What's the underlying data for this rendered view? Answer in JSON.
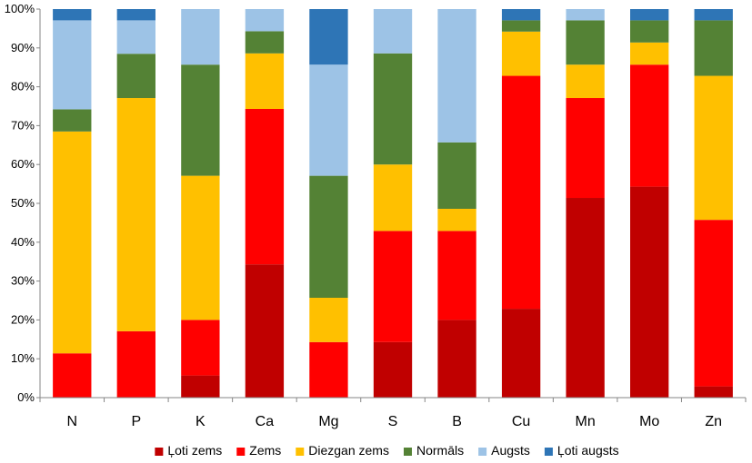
{
  "chart_data": {
    "type": "bar",
    "stacked": true,
    "percent": true,
    "categories": [
      "N",
      "P",
      "K",
      "Ca",
      "Mg",
      "S",
      "B",
      "Cu",
      "Mn",
      "Mo",
      "Zn"
    ],
    "series": [
      {
        "name": "Ļoti zems",
        "color": "#C00000",
        "values": [
          0,
          0,
          5.7,
          34.3,
          0,
          14.3,
          20,
          22.9,
          51.4,
          54.3,
          2.9
        ]
      },
      {
        "name": "Zems",
        "color": "#FF0000",
        "values": [
          11.4,
          17.1,
          14.3,
          40,
          14.3,
          28.6,
          22.9,
          60,
          25.7,
          31.4,
          42.9
        ]
      },
      {
        "name": "Diezgan zems",
        "color": "#FFC000",
        "values": [
          57.1,
          60,
          37.1,
          14.3,
          11.4,
          17.1,
          5.7,
          11.4,
          8.6,
          5.7,
          37.1
        ]
      },
      {
        "name": "Normāls",
        "color": "#548235",
        "values": [
          5.7,
          11.4,
          28.6,
          5.7,
          31.4,
          28.6,
          17.1,
          2.9,
          11.4,
          5.7,
          14.3
        ]
      },
      {
        "name": "Augsts",
        "color": "#9DC3E6",
        "values": [
          22.9,
          8.6,
          14.3,
          5.7,
          28.6,
          11.4,
          34.3,
          0,
          2.9,
          0,
          0
        ]
      },
      {
        "name": "Ļoti augsts",
        "color": "#2E75B6",
        "values": [
          2.9,
          2.9,
          0,
          0,
          14.3,
          0,
          0,
          2.9,
          0,
          2.9,
          2.9
        ]
      }
    ],
    "yticks": [
      "0%",
      "10%",
      "20%",
      "30%",
      "40%",
      "50%",
      "60%",
      "70%",
      "80%",
      "90%",
      "100%"
    ],
    "ylim": [
      0,
      100
    ],
    "title": "",
    "xlabel": "",
    "ylabel": "",
    "grid": false,
    "legend_position": "bottom"
  }
}
